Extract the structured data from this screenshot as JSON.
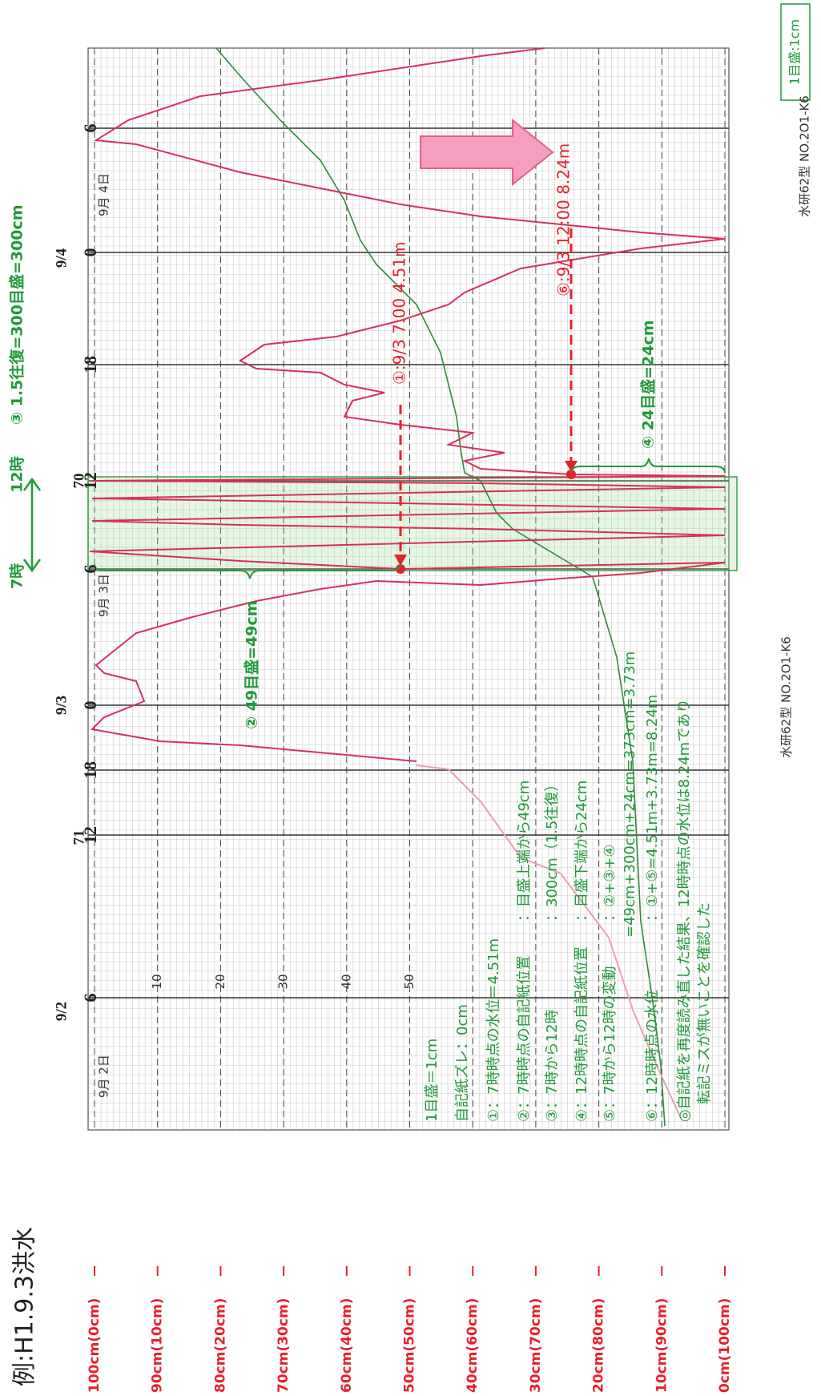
{
  "title": "例:H1.9.3洪水",
  "scale_note": "1目盛:1cm",
  "header": {
    "start": "7時",
    "end": "12時",
    "turns": "③ 1.5往復=300目盛=300cm"
  },
  "level_labels": [
    "100cm(0cm)",
    "90cm(10cm)",
    "80cm(20cm)",
    "70cm(30cm)",
    "60cm(40cm)",
    "50cm(50cm)",
    "40cm(60cm)",
    "30cm(70cm)",
    "20cm(80cm)",
    "10cm(90cm)",
    "0cm(100cm)"
  ],
  "time_labels": [
    "6",
    "12",
    "18",
    "0",
    "6",
    "12",
    "18",
    "0",
    "6"
  ],
  "date_labels": [
    "9/2",
    "9/3",
    "9/4"
  ],
  "paper_dates": [
    "9月 2日",
    "9月 3日",
    "9月 4日"
  ],
  "grid_numbers": [
    "10",
    "20",
    "30",
    "40",
    "50"
  ],
  "roll_numbers": [
    "71",
    "70"
  ],
  "paper_model": "水研62型 NO.2O1-K6",
  "readings": [
    "①:9/3 7:00 4.51m",
    "⑥:9/3 12:00 8.24m"
  ],
  "offsets": [
    "② 49目盛=49cm",
    "④ 24目盛=24cm"
  ],
  "notes": [
    {
      "label": "1目盛＝1cm"
    },
    {
      "label": "自記紙ズレ：0cm"
    },
    {
      "label": "①：7時時点の水位＝4.51m"
    },
    {
      "label": "②：7時時点の自記紙位置",
      "value": "：目盛上端から49cm"
    },
    {
      "label": "③：7時から12時",
      "value": "：300cm（1.5往復）"
    },
    {
      "label": "④：12時時点の自記紙位置",
      "value": "：目盛下端から24cm"
    },
    {
      "label": "⑤：7時から12時の変動",
      "value": "：②+③+④"
    },
    {
      "value": "=49cm+300cm+24cm=373cm=3.73m"
    },
    {
      "label": "⑥：12時時点の水位",
      "value": "：①+⑤=4.51m+3.73m=8.24m"
    },
    {
      "label": "◎自記紙を再度読み直した結果、12時時点の水位は8.24mであり"
    },
    {
      "label": "転記ミスが無いことを確認した"
    }
  ]
}
